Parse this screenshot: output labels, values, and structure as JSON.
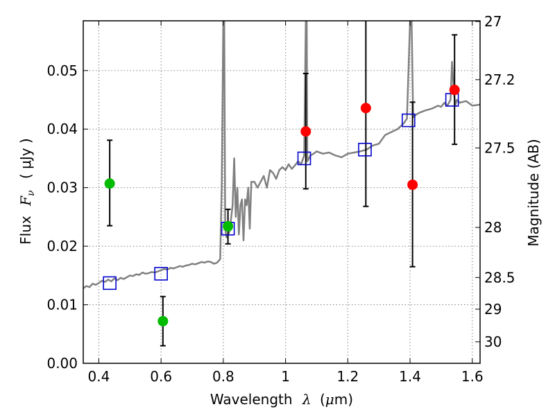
{
  "chart_data": {
    "type": "scatter",
    "title": "",
    "xlabel_text": "Wavelength",
    "xlabel_symbol": "λ",
    "xlabel_unit_open": "(",
    "xlabel_unit_mu": "μ",
    "xlabel_unit_rest": "m)",
    "ylabel_text": "Flux",
    "ylabel_symbol": "F",
    "ylabel_sub": "ν",
    "ylabel_unit": "( μJy )",
    "y2label": "Magnitude (AB)",
    "xlim": [
      0.35,
      1.625
    ],
    "ylim": [
      0.0,
      0.0585
    ],
    "grid": true,
    "x_ticks": [
      {
        "v": 0.4,
        "label": "0.4"
      },
      {
        "v": 0.6,
        "label": "0.6"
      },
      {
        "v": 0.8,
        "label": "0.8"
      },
      {
        "v": 1.0,
        "label": "1"
      },
      {
        "v": 1.2,
        "label": "1.2"
      },
      {
        "v": 1.4,
        "label": "1.4"
      },
      {
        "v": 1.6,
        "label": "1.6"
      }
    ],
    "y_ticks": [
      {
        "v": 0.0,
        "label": "0.00"
      },
      {
        "v": 0.01,
        "label": "0.01"
      },
      {
        "v": 0.02,
        "label": "0.02"
      },
      {
        "v": 0.03,
        "label": "0.03"
      },
      {
        "v": 0.04,
        "label": "0.04"
      },
      {
        "v": 0.05,
        "label": "0.05"
      }
    ],
    "magnitude_ticks": [
      {
        "flux": 0.05838,
        "label": "27"
      },
      {
        "flux": 0.04845,
        "label": "27.2"
      },
      {
        "flux": 0.03679,
        "label": "27.5"
      },
      {
        "flux": 0.02321,
        "label": "28"
      },
      {
        "flux": 0.01465,
        "label": "28.5"
      },
      {
        "flux": 0.00924,
        "label": "29"
      },
      {
        "flux": 0.00368,
        "label": "30"
      }
    ],
    "colors": {
      "spectrum": "#808080",
      "detection": "#ff0000",
      "upper": "#00bb00",
      "model": "#0000cc",
      "errorbar": "#000000",
      "grid": "#808080"
    },
    "series": [
      {
        "kind": "model_spectrum",
        "x": [
          0.35,
          0.36,
          0.37,
          0.38,
          0.39,
          0.4,
          0.41,
          0.42,
          0.43,
          0.44,
          0.45,
          0.46,
          0.47,
          0.48,
          0.49,
          0.5,
          0.51,
          0.52,
          0.53,
          0.54,
          0.55,
          0.56,
          0.57,
          0.58,
          0.59,
          0.6,
          0.61,
          0.62,
          0.63,
          0.64,
          0.65,
          0.66,
          0.67,
          0.68,
          0.69,
          0.7,
          0.71,
          0.72,
          0.73,
          0.74,
          0.75,
          0.76,
          0.77,
          0.78,
          0.79,
          0.795,
          0.8,
          0.803,
          0.806,
          0.81,
          0.82,
          0.83,
          0.835,
          0.84,
          0.845,
          0.85,
          0.855,
          0.86,
          0.865,
          0.87,
          0.875,
          0.88,
          0.885,
          0.89,
          0.9,
          0.91,
          0.92,
          0.93,
          0.94,
          0.95,
          0.96,
          0.97,
          0.98,
          0.99,
          1.0,
          1.01,
          1.02,
          1.03,
          1.04,
          1.05,
          1.06,
          1.065,
          1.068,
          1.07,
          1.075,
          1.08,
          1.09,
          1.1,
          1.12,
          1.14,
          1.16,
          1.18,
          1.2,
          1.22,
          1.24,
          1.26,
          1.28,
          1.3,
          1.32,
          1.34,
          1.36,
          1.38,
          1.39,
          1.4,
          1.405,
          1.41,
          1.42,
          1.43,
          1.45,
          1.47,
          1.49,
          1.5,
          1.51,
          1.52,
          1.53,
          1.535,
          1.54,
          1.545,
          1.55,
          1.56,
          1.58,
          1.6,
          1.625
        ],
        "y": [
          0.0128,
          0.0132,
          0.013,
          0.0136,
          0.0134,
          0.0137,
          0.0141,
          0.0139,
          0.0143,
          0.014,
          0.0145,
          0.0142,
          0.0146,
          0.0144,
          0.0147,
          0.015,
          0.0149,
          0.0152,
          0.0151,
          0.0155,
          0.0153,
          0.0154,
          0.0156,
          0.0155,
          0.0157,
          0.0159,
          0.0161,
          0.016,
          0.0163,
          0.0162,
          0.0164,
          0.0166,
          0.0165,
          0.0167,
          0.0168,
          0.017,
          0.0169,
          0.0171,
          0.0173,
          0.0172,
          0.0174,
          0.0173,
          0.017,
          0.0172,
          0.0178,
          0.03,
          0.0585,
          0.0585,
          0.023,
          0.0215,
          0.0225,
          0.027,
          0.035,
          0.025,
          0.03,
          0.022,
          0.027,
          0.028,
          0.021,
          0.028,
          0.027,
          0.03,
          0.023,
          0.031,
          0.031,
          0.03,
          0.031,
          0.032,
          0.03,
          0.033,
          0.0325,
          0.0315,
          0.033,
          0.0335,
          0.033,
          0.034,
          0.0332,
          0.0338,
          0.0345,
          0.034,
          0.0355,
          0.0585,
          0.0585,
          0.0345,
          0.035,
          0.0355,
          0.0358,
          0.0362,
          0.0358,
          0.036,
          0.0355,
          0.0352,
          0.0358,
          0.036,
          0.0362,
          0.0365,
          0.0372,
          0.0375,
          0.039,
          0.0395,
          0.04,
          0.041,
          0.0418,
          0.0585,
          0.0585,
          0.042,
          0.0425,
          0.0428,
          0.0432,
          0.0435,
          0.044,
          0.0438,
          0.0445,
          0.044,
          0.045,
          0.0515,
          0.047,
          0.044,
          0.045,
          0.0445,
          0.0448,
          0.044,
          0.0442
        ]
      },
      {
        "kind": "detections",
        "points": [
          {
            "x": 1.065,
            "y": 0.0396,
            "err_lo": 0.0298,
            "err_hi": 0.0495
          },
          {
            "x": 1.258,
            "y": 0.0436,
            "err_lo": 0.0268,
            "err_hi": 0.0603
          },
          {
            "x": 1.408,
            "y": 0.0305,
            "err_lo": 0.0165,
            "err_hi": 0.0446
          },
          {
            "x": 1.543,
            "y": 0.0467,
            "err_lo": 0.0374,
            "err_hi": 0.0561
          }
        ]
      },
      {
        "kind": "upper_limits",
        "points": [
          {
            "x": 0.435,
            "y": 0.0307,
            "err_lo": 0.0235,
            "err_hi": 0.0381
          },
          {
            "x": 0.606,
            "y": 0.0072,
            "err_lo": 0.003,
            "err_hi": 0.0114
          },
          {
            "x": 0.815,
            "y": 0.0234,
            "err_lo": 0.0204,
            "err_hi": 0.0263
          }
        ]
      },
      {
        "kind": "model_photometry",
        "points": [
          {
            "x": 0.435,
            "y": 0.0137
          },
          {
            "x": 0.6,
            "y": 0.0153
          },
          {
            "x": 0.815,
            "y": 0.023
          },
          {
            "x": 1.06,
            "y": 0.035
          },
          {
            "x": 1.255,
            "y": 0.0365
          },
          {
            "x": 1.395,
            "y": 0.0415
          },
          {
            "x": 1.535,
            "y": 0.045
          }
        ]
      }
    ]
  }
}
